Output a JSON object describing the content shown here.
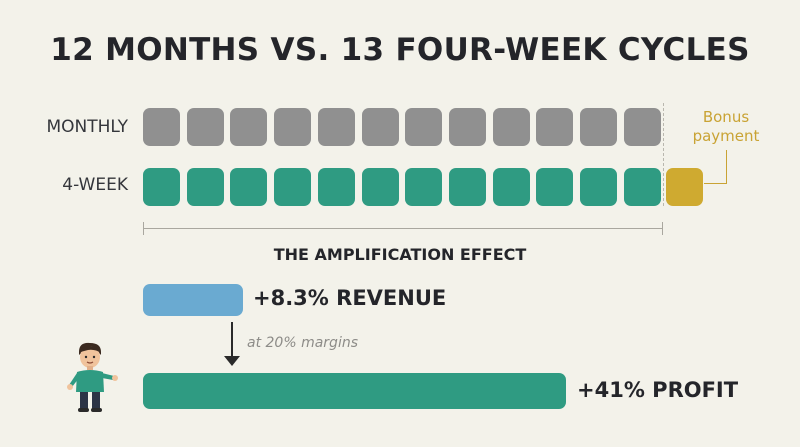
{
  "title": "12 MONTHS VS. 13 FOUR-WEEK CYCLES",
  "rows": {
    "monthly": {
      "label": "MONTHLY",
      "count": 12
    },
    "four_week": {
      "label": "4-WEEK",
      "count": 12
    }
  },
  "bonus": {
    "line1": "Bonus",
    "line2": "payment"
  },
  "effect": {
    "subtitle": "THE AMPLIFICATION EFFECT",
    "revenue_label": "+8.3% REVENUE",
    "margin_note": "at 20% margins",
    "profit_label": "+41% PROFIT"
  },
  "colors": {
    "monthly": "#909090",
    "four_week": "#2f9b82",
    "bonus": "#cfaa30",
    "revenue": "#6aaad1",
    "profit": "#2f9b82"
  },
  "icons": {
    "character": "person-illustration-icon"
  }
}
